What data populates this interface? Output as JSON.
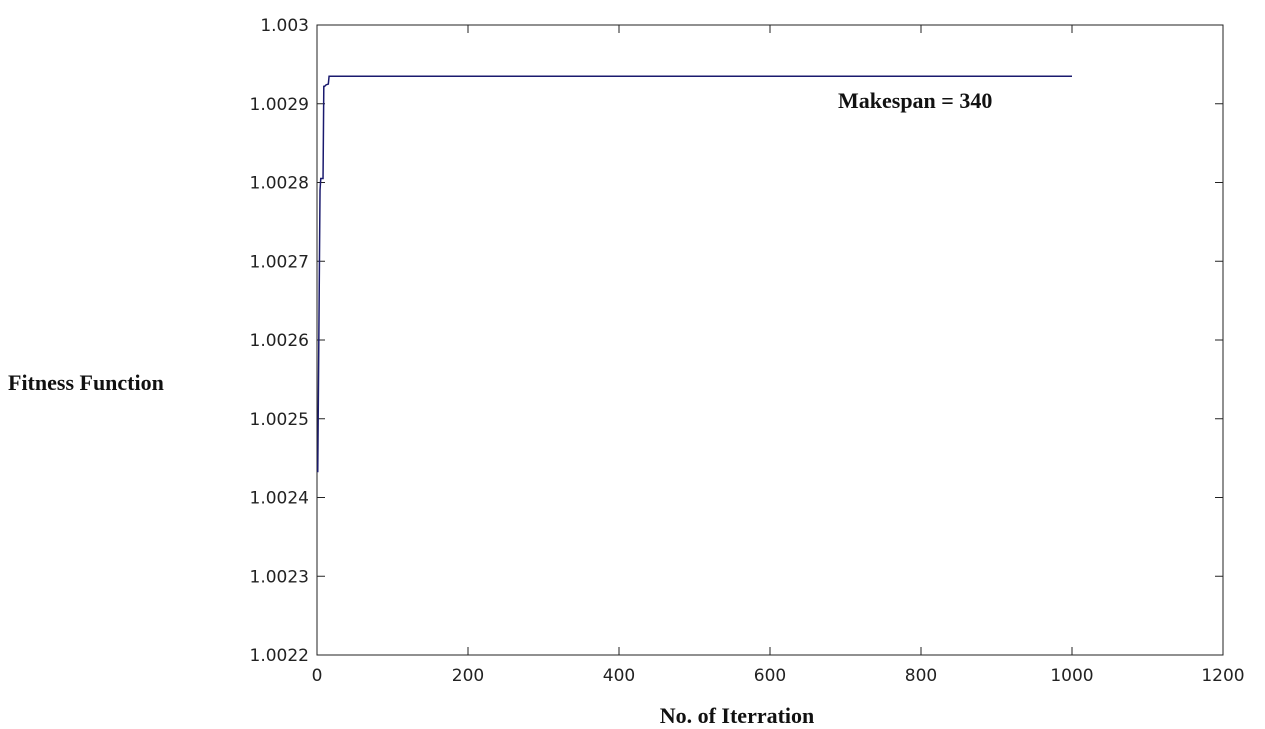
{
  "chart_data": {
    "type": "line",
    "title": "",
    "xlabel": "No. of Iterration",
    "ylabel": "Fitness Function",
    "xlim": [
      0,
      1200
    ],
    "ylim": [
      1.0022,
      1.003
    ],
    "xticks": [
      0,
      200,
      400,
      600,
      800,
      1000,
      1200
    ],
    "xtick_labels": [
      "0",
      "200",
      "400",
      "600",
      "800",
      "1000",
      "1200"
    ],
    "yticks": [
      1.0022,
      1.0023,
      1.0024,
      1.0025,
      1.0026,
      1.0027,
      1.0028,
      1.0029,
      1.003
    ],
    "ytick_labels": [
      "1.0022",
      "1.0023",
      "1.0024",
      "1.0025",
      "1.0026",
      "1.0027",
      "1.0028",
      "1.0029",
      "1.003"
    ],
    "grid": false,
    "line_color": "#1a1a6e",
    "series": [
      {
        "x": [
          1,
          2,
          3,
          4,
          5,
          8,
          9,
          10,
          12,
          15,
          16,
          1000
        ],
        "y": [
          1.002432,
          1.00255,
          1.00267,
          1.00279,
          1.002805,
          1.002805,
          1.002922,
          1.002922,
          1.002924,
          1.002925,
          1.002935,
          1.002935
        ]
      }
    ],
    "annotation": "Makespan = 340"
  }
}
